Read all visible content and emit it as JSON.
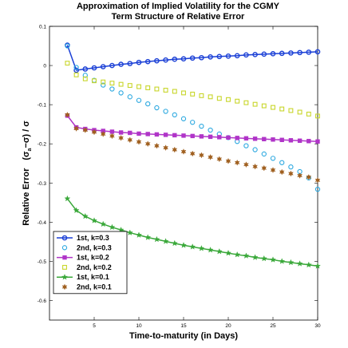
{
  "chart_data": {
    "type": "line",
    "title": "Approximation of Implied Volatility for the CGMY",
    "subtitle": "Term Structure of Relative Error",
    "xlabel": "Time-to-maturity (in Days)",
    "ylabel_main": "Relative Error",
    "ylabel_formula": "(σ",
    "ylabel_sub": "a",
    "ylabel_formula_rest": "−σ) / σ",
    "xlim": [
      0,
      30
    ],
    "ylim": [
      -0.65,
      0.1
    ],
    "xticks": [
      5,
      10,
      15,
      20,
      25,
      30
    ],
    "yticks": [
      0.1,
      0,
      -0.1,
      -0.2,
      -0.3,
      -0.4,
      -0.5,
      -0.6
    ],
    "ytick_labels": [
      "0.1",
      "0",
      "-0.1",
      "-0.2",
      "-0.3",
      "-0.4",
      "-0.5",
      "-0.6"
    ],
    "x": [
      2,
      3,
      4,
      5,
      6,
      7,
      8,
      9,
      10,
      11,
      12,
      13,
      14,
      15,
      16,
      17,
      18,
      19,
      20,
      21,
      22,
      23,
      24,
      25,
      26,
      27,
      28,
      29,
      30
    ],
    "grid": false,
    "legend_position": "bottom-left",
    "series": [
      {
        "name": "1st, k=0.3",
        "color": "#1a3fd6",
        "marker": "circle",
        "line": true,
        "values": [
          0.052,
          -0.012,
          -0.009,
          -0.006,
          -0.003,
          0.0,
          0.003,
          0.005,
          0.008,
          0.01,
          0.012,
          0.014,
          0.016,
          0.017,
          0.019,
          0.02,
          0.022,
          0.023,
          0.024,
          0.025,
          0.027,
          0.028,
          0.029,
          0.03,
          0.031,
          0.032,
          0.033,
          0.034,
          0.035
        ]
      },
      {
        "name": "2nd, k=0.3",
        "color": "#2ba8e0",
        "marker": "open-circle",
        "line": false,
        "values": [
          0.05,
          -0.005,
          -0.025,
          -0.038,
          -0.05,
          -0.06,
          -0.07,
          -0.08,
          -0.089,
          -0.098,
          -0.108,
          -0.117,
          -0.126,
          -0.136,
          -0.145,
          -0.155,
          -0.165,
          -0.175,
          -0.184,
          -0.194,
          -0.205,
          -0.215,
          -0.226,
          -0.237,
          -0.248,
          -0.259,
          -0.271,
          -0.287,
          -0.316
        ]
      },
      {
        "name": "1st, k=0.2",
        "color": "#b035c8",
        "marker": "square",
        "line": true,
        "values": [
          -0.128,
          -0.158,
          -0.162,
          -0.165,
          -0.167,
          -0.169,
          -0.171,
          -0.172,
          -0.174,
          -0.175,
          -0.176,
          -0.177,
          -0.178,
          -0.179,
          -0.18,
          -0.181,
          -0.182,
          -0.183,
          -0.184,
          -0.185,
          -0.186,
          -0.187,
          -0.188,
          -0.189,
          -0.19,
          -0.191,
          -0.192,
          -0.193,
          -0.194
        ]
      },
      {
        "name": "2nd, k=0.2",
        "color": "#c8d62a",
        "marker": "open-square",
        "line": false,
        "values": [
          0.006,
          -0.024,
          -0.034,
          -0.039,
          -0.042,
          -0.045,
          -0.048,
          -0.051,
          -0.054,
          -0.057,
          -0.06,
          -0.063,
          -0.066,
          -0.07,
          -0.073,
          -0.077,
          -0.08,
          -0.084,
          -0.087,
          -0.091,
          -0.095,
          -0.099,
          -0.103,
          -0.107,
          -0.111,
          -0.115,
          -0.119,
          -0.124,
          -0.129
        ]
      },
      {
        "name": "1st, k=0.1",
        "color": "#3aa83a",
        "marker": "star",
        "line": true,
        "values": [
          -0.34,
          -0.37,
          -0.385,
          -0.396,
          -0.405,
          -0.413,
          -0.42,
          -0.427,
          -0.433,
          -0.439,
          -0.444,
          -0.449,
          -0.454,
          -0.459,
          -0.463,
          -0.467,
          -0.471,
          -0.475,
          -0.479,
          -0.483,
          -0.486,
          -0.49,
          -0.493,
          -0.496,
          -0.5,
          -0.503,
          -0.506,
          -0.509,
          -0.512
        ]
      },
      {
        "name": "2nd, k=0.1",
        "color": "#a06020",
        "marker": "hexagram",
        "line": false,
        "values": [
          -0.126,
          -0.161,
          -0.165,
          -0.17,
          -0.175,
          -0.18,
          -0.185,
          -0.19,
          -0.195,
          -0.2,
          -0.205,
          -0.21,
          -0.215,
          -0.22,
          -0.225,
          -0.229,
          -0.234,
          -0.239,
          -0.244,
          -0.248,
          -0.253,
          -0.258,
          -0.262,
          -0.267,
          -0.272,
          -0.276,
          -0.281,
          -0.285,
          -0.293
        ]
      }
    ]
  }
}
